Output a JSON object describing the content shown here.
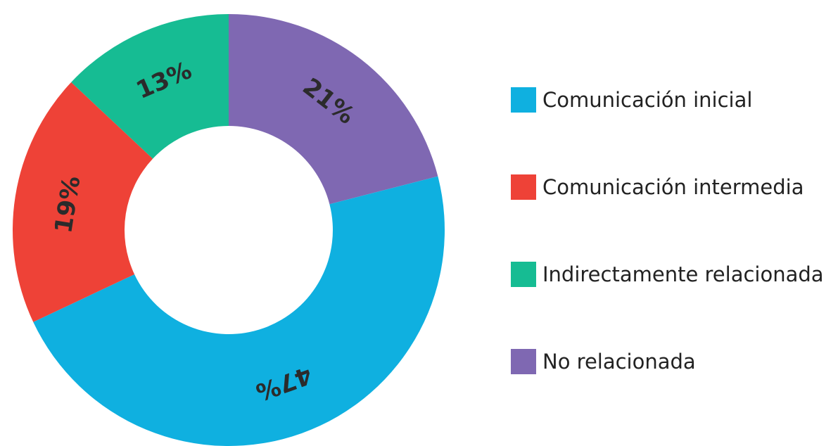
{
  "chart_data": {
    "type": "pie",
    "variant": "donut",
    "legend_position": "right",
    "slices": [
      {
        "label": "No relacionada",
        "value": 21,
        "display": "21%",
        "color": "#7f68b2"
      },
      {
        "label": "Comunicación inicial",
        "value": 47,
        "display": "47%",
        "color": "#0fb0e0"
      },
      {
        "label": "Comunicación intermedia",
        "value": 19,
        "display": "19%",
        "color": "#ee4237"
      },
      {
        "label": "Indirectamente relacionada",
        "value": 13,
        "display": "13%",
        "color": "#16bc93"
      }
    ],
    "legend": [
      {
        "label": "Comunicación inicial",
        "color": "#0fb0e0"
      },
      {
        "label": "Comunicación intermedia",
        "color": "#ee4237"
      },
      {
        "label": "Indirectamente relacionada",
        "color": "#16bc93"
      },
      {
        "label": "No relacionada",
        "color": "#7f68b2"
      }
    ]
  }
}
